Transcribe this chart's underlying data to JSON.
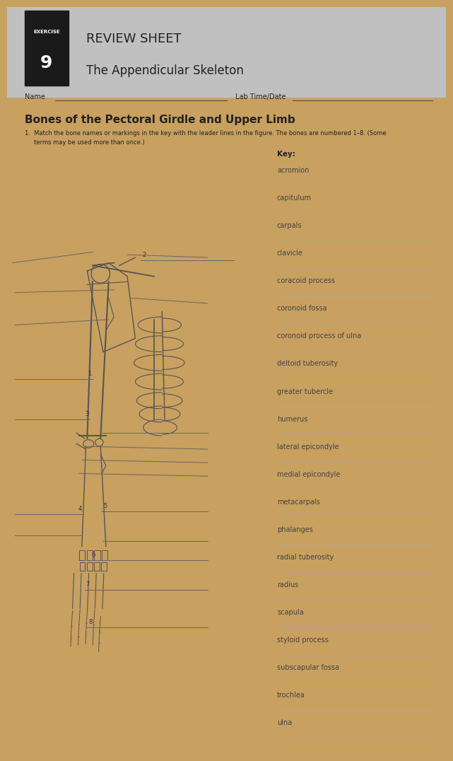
{
  "background_page": "#d8d8d8",
  "background_paper": "#f0f0f0",
  "background_wood": "#c8a060",
  "exercise_box_color": "#1a1a1a",
  "exercise_label": "EXERCISE",
  "exercise_number": "9",
  "review_sheet_title": "REVIEW SHEET",
  "subtitle": "The Appendicular Skeleton",
  "name_label": "Name",
  "lab_time_label": "Lab Time/Date",
  "section_title": "Bones of the Pectoral Girdle and Upper Limb",
  "question_number": "1.",
  "question_text": "Match the bone names or markings in the key with the leader lines in the figure. The bones are numbered 1–8. (Some\nterms may be used more than once.)",
  "key_label": "Key:",
  "key_items": [
    "acromion",
    "capitulum",
    "carpals",
    "clavicle",
    "coracoid process",
    "coronoid fossa",
    "coronoid process of ulna",
    "deltoid tuberosity",
    "greater tubercle",
    "humerus",
    "lateral epicondyle",
    "medial epicondyle",
    "metacarpals",
    "phalanges",
    "radial tuberosity",
    "radius",
    "scapula",
    "styloid process",
    "subscapular fossa",
    "trochlea",
    "ulna"
  ],
  "text_color": "#222222",
  "line_color": "#444444",
  "key_text_color": "#444444"
}
